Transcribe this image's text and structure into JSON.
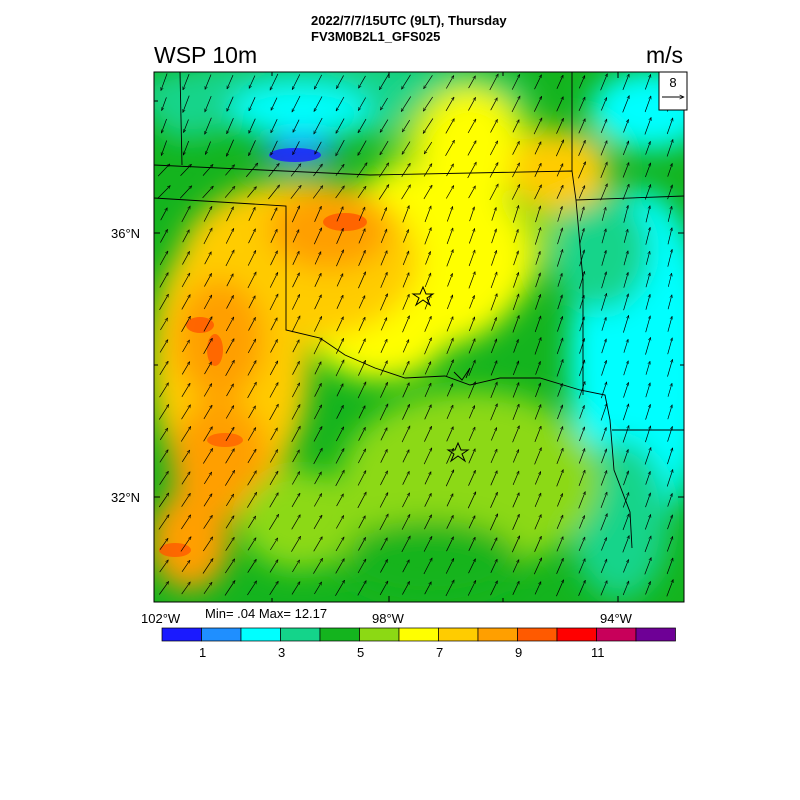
{
  "header": {
    "line1": "2022/7/7/15UTC (9LT), Thursday",
    "line2": "FV3M0B2L1_GFS025"
  },
  "variable_label": "WSP 10m",
  "unit_label": "m/s",
  "reference_vector": {
    "value": "8"
  },
  "lat_labels": [
    "36°N",
    "32°N"
  ],
  "lon_labels": [
    "102°W",
    "98°W",
    "94°W"
  ],
  "minmax_text": "Min= .04 Max= 12.17",
  "colorbar": {
    "colors": [
      "#1a1aff",
      "#1f8fff",
      "#00ffff",
      "#14d48a",
      "#14b41e",
      "#8cd914",
      "#ffff00",
      "#ffcc00",
      "#ff9f00",
      "#ff5a00",
      "#ff0000",
      "#c8005a",
      "#6e0096"
    ],
    "labels": [
      "1",
      "3",
      "5",
      "7",
      "9",
      "11"
    ]
  },
  "stars": [
    {
      "name": "star-marker-north"
    },
    {
      "name": "star-marker-south"
    }
  ]
}
